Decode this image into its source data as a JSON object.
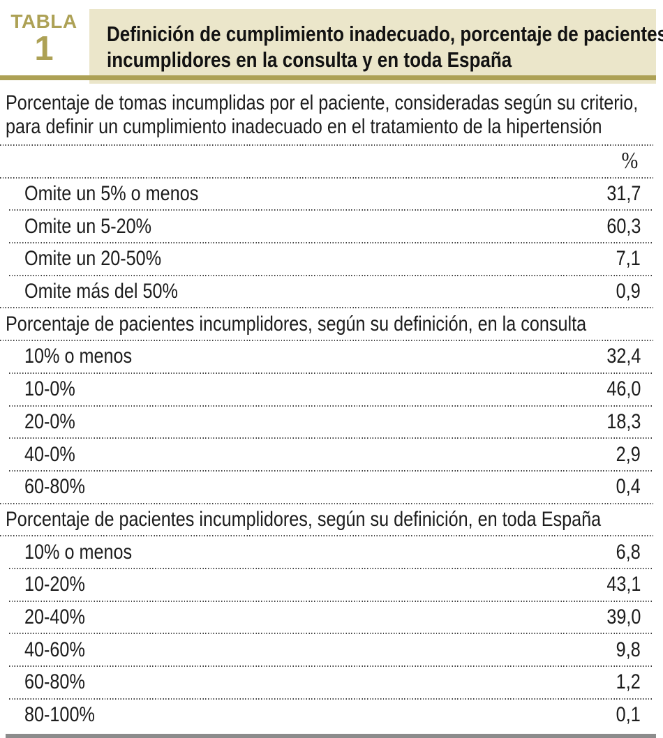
{
  "header": {
    "badge_label": "TABLA",
    "badge_number": "1",
    "title_line1": "Definición de cumplimiento inadecuado, porcentaje de pacientes",
    "title_line2": "incumplidores en la consulta y en toda España"
  },
  "intro": {
    "line1": "Porcentaje de tomas incumplidas por el paciente, consideradas según su criterio,",
    "line2": "para definir un cumplimiento inadecuado en el tratamiento de la hipertensión"
  },
  "table": {
    "value_column_header": "%",
    "sections": [
      {
        "rows": [
          {
            "label": "Omite un 5% o menos",
            "value": "31,7"
          },
          {
            "label": "Omite un 5-20%",
            "value": "60,3"
          },
          {
            "label": "Omite un 20-50%",
            "value": "7,1"
          },
          {
            "label": "Omite más del 50%",
            "value": "0,9"
          }
        ]
      },
      {
        "header": "Porcentaje de pacientes incumplidores, según su definición, en la consulta",
        "rows": [
          {
            "label": "10% o menos",
            "value": "32,4"
          },
          {
            "label": "10-0%",
            "value": "46,0"
          },
          {
            "label": "20-0%",
            "value": "18,3"
          },
          {
            "label": "40-0%",
            "value": "2,9"
          },
          {
            "label": "60-80%",
            "value": "0,4"
          }
        ]
      },
      {
        "header": "Porcentaje de pacientes incumplidores, según su definición, en toda España",
        "rows": [
          {
            "label": "10% o menos",
            "value": "6,8"
          },
          {
            "label": "10-20%",
            "value": "43,1"
          },
          {
            "label": "20-40%",
            "value": "39,0"
          },
          {
            "label": "40-60%",
            "value": "9,8"
          },
          {
            "label": "60-80%",
            "value": "1,2"
          },
          {
            "label": "80-100%",
            "value": "0,1"
          }
        ]
      }
    ]
  },
  "colors": {
    "accent_gold": "#ada155",
    "panel_beige": "#ebe6ca",
    "bottom_bar_gray": "#8c8c8c",
    "text_ink": "#1c1c1c"
  }
}
